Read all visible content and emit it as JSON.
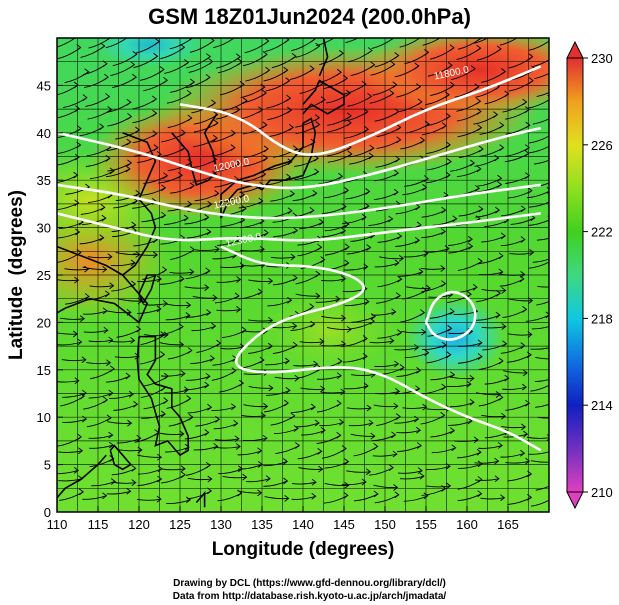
{
  "title": "GSM 18Z01Jun2024 (200.0hPa)",
  "credit": {
    "line1": "Drawing by DCL (https://www.gfd-dennou.org/library/dcl/)",
    "line2": "Data from http://database.rish.kyoto-u.ac.jp/arch/jmadata/"
  },
  "chart_data": {
    "type": "heatmap",
    "title": "GSM 18Z01Jun2024 (200.0hPa)",
    "xlabel": "Longitude (degrees)",
    "ylabel": "Latitude  (degrees)",
    "xlim": [
      110,
      170
    ],
    "ylim": [
      0,
      50
    ],
    "x_ticks": [
      110,
      115,
      120,
      125,
      130,
      135,
      140,
      145,
      150,
      155,
      160,
      165
    ],
    "y_ticks": [
      0,
      5,
      10,
      15,
      20,
      25,
      30,
      35,
      40,
      45
    ],
    "grid": true,
    "colorbar": {
      "location": "right",
      "range": [
        210,
        230
      ],
      "ticks": [
        210,
        214,
        218,
        222,
        226,
        230
      ],
      "colors": [
        "#e040c0",
        "#7030c0",
        "#1020c0",
        "#1070e0",
        "#10c8e0",
        "#40d880",
        "#40d020",
        "#90e020",
        "#e0e020",
        "#f0a020",
        "#f05030",
        "#e03030"
      ]
    },
    "contours": [
      {
        "label": "11800.0",
        "values_lonlat": [
          [
            125,
            43
          ],
          [
            132,
            42
          ],
          [
            138,
            38
          ],
          [
            142,
            37.5
          ],
          [
            148,
            39.5
          ],
          [
            155,
            42.5
          ],
          [
            162,
            44.5
          ],
          [
            169,
            47
          ]
        ]
      },
      {
        "label": "12000.0",
        "values_lonlat": [
          [
            110,
            40
          ],
          [
            120,
            38
          ],
          [
            127,
            36
          ],
          [
            133,
            34.5
          ],
          [
            140,
            34
          ],
          [
            148,
            35.5
          ],
          [
            156,
            37.5
          ],
          [
            164,
            39.5
          ],
          [
            169,
            40.5
          ]
        ]
      },
      {
        "label": "12200.0",
        "values_lonlat": [
          [
            110,
            34.5
          ],
          [
            118,
            33.5
          ],
          [
            125,
            32
          ],
          [
            133,
            31
          ],
          [
            140,
            31
          ],
          [
            150,
            32
          ],
          [
            160,
            33.5
          ],
          [
            169,
            34.5
          ]
        ]
      },
      {
        "label": "12300.0",
        "values_lonlat": [
          [
            110,
            31.5
          ],
          [
            117,
            30
          ],
          [
            124,
            28.5
          ],
          [
            132,
            29
          ],
          [
            141,
            28.5
          ],
          [
            150,
            29.5
          ],
          [
            160,
            30.5
          ],
          [
            169,
            31.5
          ]
        ]
      },
      {
        "label": "",
        "values_lonlat": [
          [
            130,
            28
          ],
          [
            135,
            26
          ],
          [
            141,
            26
          ],
          [
            146,
            25
          ],
          [
            148,
            23.5
          ],
          [
            145,
            22
          ],
          [
            138,
            20.5
          ],
          [
            134,
            18.5
          ],
          [
            131,
            15.5
          ],
          [
            135,
            14.5
          ],
          [
            145,
            15.5
          ],
          [
            150,
            14.5
          ],
          [
            155,
            12
          ],
          [
            160,
            10
          ],
          [
            165,
            8.5
          ],
          [
            169,
            6.5
          ]
        ]
      },
      {
        "label": "",
        "values_lonlat": [
          [
            155,
            20
          ],
          [
            156,
            22.5
          ],
          [
            158.5,
            23.5
          ],
          [
            161,
            22
          ],
          [
            161,
            19.5
          ],
          [
            158.5,
            18
          ],
          [
            156,
            18.5
          ],
          [
            155,
            20
          ]
        ]
      }
    ],
    "annotations": [
      "11800.0",
      "12000.0",
      "12200.0",
      "12300.0"
    ],
    "wind_streamlines": true,
    "coastlines": true
  }
}
